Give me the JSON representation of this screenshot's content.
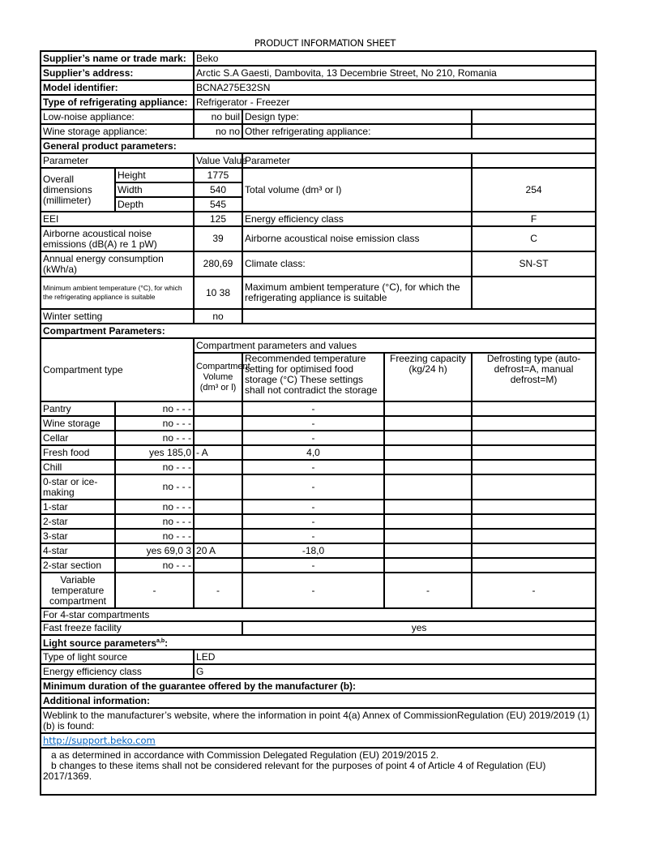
{
  "title": "PRODUCT INFORMATION SHEET",
  "supplier": {
    "name_label": "Supplier’s name or trade mark:",
    "name": "Beko",
    "address_label": "Supplier’s address:",
    "address": "Arctic S.A  Gaesti, Dambovita, 13 Decembrie Street, No 210, Romania",
    "model_label": "Model identifier:",
    "model": "BCNA275E32SN",
    "type_label": "Type of refrigerating appliance:",
    "type": "Refrigerator - Freezer"
  },
  "appliance": {
    "low_noise_label": "Low-noise appliance:",
    "low_noise": "no buil",
    "design_label": "Design type:",
    "wine_label": "Wine storage appliance:",
    "wine": "no no",
    "other_label": "Other refrigerating appliance:"
  },
  "general": {
    "heading": "General product parameters:",
    "param_header": "Parameter",
    "value_header": "Value   Value",
    "param_header2": "Parameter",
    "overall_label": "Overall dimensions (millimeter)",
    "height_label": "Height",
    "height": "1775",
    "width_label": "Width",
    "width": "540",
    "depth_label": "Depth",
    "depth": "545",
    "total_volume_label": "Total volume (dm³ or l)",
    "total_volume": "254",
    "eei_label": "EEI",
    "eei": "125",
    "eec_label": "Energy efficiency class",
    "eec": "F",
    "noise_label": "Airborne acoustical noise emissions (dB(A) re 1 pW)",
    "noise": "39",
    "noise_class_label": "Airborne acoustical noise emission class",
    "noise_class": "C",
    "energy_label": "Annual energy consumption (kWh/a)",
    "energy": "280,69",
    "climate_label": "Climate class:",
    "climate": "SN-ST",
    "min_temp_label": "Minimum ambient temperature (°C), for which the refrigerating appliance is suitable",
    "min_temp": "10 38",
    "max_temp_label": "Maximum ambient temperature (°C), for which the refrigerating appliance is suitable",
    "winter_label": "Winter setting",
    "winter": "no"
  },
  "compartments": {
    "heading": "Compartment Parameters:",
    "type_header": "Compartment type",
    "values_header": "Compartment parameters and values",
    "volume_header": "Compartment Volume (dm³ or l)",
    "temp_header": "Recommended temperature setting for optimised food storage (°C) These settings shall not contradict the storage",
    "freezing_header": "Freezing capacity (kg/24 h)",
    "defrost_header": "Defrosting type (auto-defrost=A, manual defrost=M)",
    "rows": [
      {
        "name": "Pantry",
        "present": "no -  -  -",
        "volume": "",
        "temp": "-"
      },
      {
        "name": "Wine storage",
        "present": "no -  -  -",
        "volume": "",
        "temp": "-"
      },
      {
        "name": "Cellar",
        "present": "no -  -  -",
        "volume": "",
        "temp": "-"
      },
      {
        "name": "Fresh food",
        "present": "yes 185,0",
        "volume": "-   A",
        "temp": "4,0"
      },
      {
        "name": "Chill",
        "present": "no -  -  -",
        "volume": "",
        "temp": "-"
      },
      {
        "name": "0-star or ice-making",
        "present": "no -  -  -",
        "volume": "",
        "temp": "-"
      },
      {
        "name": "1-star",
        "present": "no -  -  -",
        "volume": "",
        "temp": "-"
      },
      {
        "name": "2-star",
        "present": "no -  -  -",
        "volume": "",
        "temp": "-"
      },
      {
        "name": "3-star",
        "present": "no -  -  -",
        "volume": "",
        "temp": "-"
      },
      {
        "name": "4-star",
        "present": "yes 69,0 3",
        "volume": "20 A",
        "temp": "-18,0"
      },
      {
        "name": "2-star section",
        "present": "no -  -  -",
        "volume": "",
        "temp": "-"
      }
    ],
    "variable": {
      "name": "Variable temperature compartment",
      "present": "-",
      "volume": "-",
      "temp": "-",
      "freezing": "-",
      "defrost": "-"
    },
    "four_star_label": "For 4-star compartments",
    "fast_freeze_label": "Fast freeze facility",
    "fast_freeze": "yes"
  },
  "light": {
    "heading": "Light source parameters",
    "heading_sup": "a,b",
    "heading_colon": ":",
    "type_label": "Type of light source",
    "type": "LED",
    "class_label": "Energy efficiency class",
    "class": "G"
  },
  "guarantee_label": "Minimum duration of the guarantee offered by the manufacturer (b):",
  "additional": {
    "heading": "Additional information:",
    "weblink_text": "Weblink to the manufacturer’s website, where the information in point 4(a) Annex of CommissionRegulation (EU) 2019/2019 (1)(b) is found:",
    "link": "http://support.beko.com",
    "note_a": "a as determined in accordance with Commission Delegated Regulation (EU) 2019/2015 2.",
    "note_b": "b changes to these items shall not be considered relevant for the purposes of point 4 of Article 4 of Regulation (EU) 2017/1369."
  }
}
